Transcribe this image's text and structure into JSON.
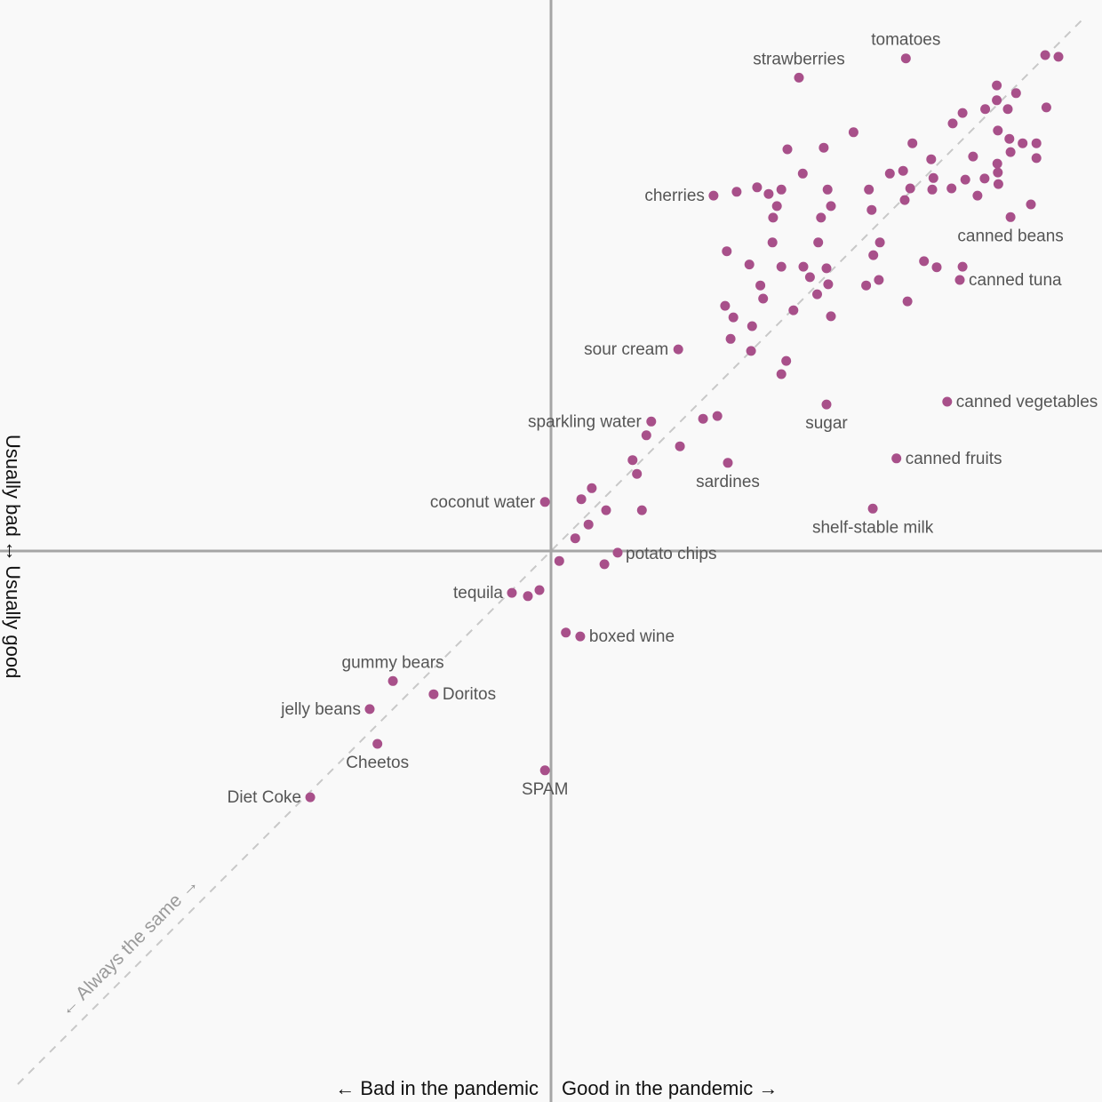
{
  "chart_data": {
    "type": "scatter",
    "title": "",
    "xlabel_left": "← Bad in the pandemic",
    "xlabel_right": "Good in the pandemic →",
    "ylabel_top": "← Usually good",
    "ylabel_bottom": "Usually bad →",
    "diagonal_label": "← Always the same →",
    "xlim": [
      -1,
      1
    ],
    "ylim": [
      -1,
      1
    ],
    "grid": false,
    "colors": {
      "point": "#a8508a",
      "axis": "#a6a6a6",
      "diagonal": "#c8c8c8",
      "background": "#f9f9f9"
    },
    "points": [
      {
        "x": 0.644,
        "y": 0.894,
        "label": "tomatoes"
      },
      {
        "x": 0.45,
        "y": 0.859,
        "label": "strawberries"
      },
      {
        "x": 0.295,
        "y": 0.645,
        "label": "cherries"
      },
      {
        "x": 0.834,
        "y": 0.606,
        "label": "canned beans"
      },
      {
        "x": 0.742,
        "y": 0.492,
        "label": "canned tuna"
      },
      {
        "x": 0.231,
        "y": 0.366,
        "label": "sour cream"
      },
      {
        "x": 0.719,
        "y": 0.271,
        "label": "canned vegetables"
      },
      {
        "x": 0.5,
        "y": 0.266,
        "label": "sugar"
      },
      {
        "x": 0.182,
        "y": 0.235,
        "label": "sparkling water"
      },
      {
        "x": 0.627,
        "y": 0.168,
        "label": "canned fruits"
      },
      {
        "x": 0.321,
        "y": 0.16,
        "label": "sardines"
      },
      {
        "x": -0.011,
        "y": 0.089,
        "label": "coconut water"
      },
      {
        "x": 0.584,
        "y": 0.077,
        "label": "shelf-stable milk"
      },
      {
        "x": 0.121,
        "y": -0.003,
        "label": "potato chips"
      },
      {
        "x": -0.071,
        "y": -0.076,
        "label": "tequila"
      },
      {
        "x": 0.053,
        "y": -0.155,
        "label": "boxed wine"
      },
      {
        "x": -0.287,
        "y": -0.236,
        "label": "gummy bears"
      },
      {
        "x": -0.213,
        "y": -0.26,
        "label": "Doritos"
      },
      {
        "x": -0.329,
        "y": -0.287,
        "label": "jelly beans"
      },
      {
        "x": -0.315,
        "y": -0.35,
        "label": "Cheetos"
      },
      {
        "x": -0.011,
        "y": -0.398,
        "label": "SPAM"
      },
      {
        "x": -0.437,
        "y": -0.447,
        "label": "Diet Coke"
      },
      {
        "x": 0.897,
        "y": 0.9,
        "label": ""
      },
      {
        "x": 0.921,
        "y": 0.897,
        "label": ""
      },
      {
        "x": 0.809,
        "y": 0.845,
        "label": ""
      },
      {
        "x": 0.844,
        "y": 0.831,
        "label": ""
      },
      {
        "x": 0.809,
        "y": 0.818,
        "label": ""
      },
      {
        "x": 0.829,
        "y": 0.802,
        "label": ""
      },
      {
        "x": 0.788,
        "y": 0.802,
        "label": ""
      },
      {
        "x": 0.899,
        "y": 0.805,
        "label": ""
      },
      {
        "x": 0.747,
        "y": 0.795,
        "label": ""
      },
      {
        "x": 0.729,
        "y": 0.776,
        "label": ""
      },
      {
        "x": 0.549,
        "y": 0.76,
        "label": ""
      },
      {
        "x": 0.811,
        "y": 0.763,
        "label": ""
      },
      {
        "x": 0.832,
        "y": 0.748,
        "label": ""
      },
      {
        "x": 0.856,
        "y": 0.74,
        "label": ""
      },
      {
        "x": 0.881,
        "y": 0.74,
        "label": ""
      },
      {
        "x": 0.429,
        "y": 0.729,
        "label": ""
      },
      {
        "x": 0.495,
        "y": 0.732,
        "label": ""
      },
      {
        "x": 0.656,
        "y": 0.74,
        "label": ""
      },
      {
        "x": 0.834,
        "y": 0.724,
        "label": ""
      },
      {
        "x": 0.766,
        "y": 0.716,
        "label": ""
      },
      {
        "x": 0.81,
        "y": 0.703,
        "label": ""
      },
      {
        "x": 0.881,
        "y": 0.713,
        "label": ""
      },
      {
        "x": 0.69,
        "y": 0.711,
        "label": ""
      },
      {
        "x": 0.811,
        "y": 0.687,
        "label": ""
      },
      {
        "x": 0.639,
        "y": 0.69,
        "label": ""
      },
      {
        "x": 0.615,
        "y": 0.685,
        "label": ""
      },
      {
        "x": 0.457,
        "y": 0.685,
        "label": ""
      },
      {
        "x": 0.694,
        "y": 0.677,
        "label": ""
      },
      {
        "x": 0.752,
        "y": 0.674,
        "label": ""
      },
      {
        "x": 0.787,
        "y": 0.676,
        "label": ""
      },
      {
        "x": 0.812,
        "y": 0.666,
        "label": ""
      },
      {
        "x": 0.652,
        "y": 0.658,
        "label": ""
      },
      {
        "x": 0.692,
        "y": 0.656,
        "label": ""
      },
      {
        "x": 0.727,
        "y": 0.658,
        "label": ""
      },
      {
        "x": 0.374,
        "y": 0.66,
        "label": ""
      },
      {
        "x": 0.418,
        "y": 0.656,
        "label": ""
      },
      {
        "x": 0.502,
        "y": 0.656,
        "label": ""
      },
      {
        "x": 0.577,
        "y": 0.656,
        "label": ""
      },
      {
        "x": 0.337,
        "y": 0.652,
        "label": ""
      },
      {
        "x": 0.395,
        "y": 0.648,
        "label": ""
      },
      {
        "x": 0.774,
        "y": 0.645,
        "label": ""
      },
      {
        "x": 0.642,
        "y": 0.637,
        "label": ""
      },
      {
        "x": 0.41,
        "y": 0.626,
        "label": ""
      },
      {
        "x": 0.508,
        "y": 0.626,
        "label": ""
      },
      {
        "x": 0.871,
        "y": 0.629,
        "label": ""
      },
      {
        "x": 0.403,
        "y": 0.605,
        "label": ""
      },
      {
        "x": 0.49,
        "y": 0.605,
        "label": ""
      },
      {
        "x": 0.582,
        "y": 0.619,
        "label": ""
      },
      {
        "x": 0.402,
        "y": 0.56,
        "label": ""
      },
      {
        "x": 0.485,
        "y": 0.56,
        "label": ""
      },
      {
        "x": 0.597,
        "y": 0.56,
        "label": ""
      },
      {
        "x": 0.319,
        "y": 0.544,
        "label": ""
      },
      {
        "x": 0.585,
        "y": 0.537,
        "label": ""
      },
      {
        "x": 0.36,
        "y": 0.52,
        "label": ""
      },
      {
        "x": 0.418,
        "y": 0.516,
        "label": ""
      },
      {
        "x": 0.458,
        "y": 0.516,
        "label": ""
      },
      {
        "x": 0.5,
        "y": 0.513,
        "label": ""
      },
      {
        "x": 0.677,
        "y": 0.526,
        "label": ""
      },
      {
        "x": 0.7,
        "y": 0.515,
        "label": ""
      },
      {
        "x": 0.747,
        "y": 0.516,
        "label": ""
      },
      {
        "x": 0.47,
        "y": 0.497,
        "label": ""
      },
      {
        "x": 0.595,
        "y": 0.492,
        "label": ""
      },
      {
        "x": 0.38,
        "y": 0.482,
        "label": ""
      },
      {
        "x": 0.503,
        "y": 0.484,
        "label": ""
      },
      {
        "x": 0.572,
        "y": 0.482,
        "label": ""
      },
      {
        "x": 0.483,
        "y": 0.466,
        "label": ""
      },
      {
        "x": 0.385,
        "y": 0.458,
        "label": ""
      },
      {
        "x": 0.647,
        "y": 0.453,
        "label": ""
      },
      {
        "x": 0.316,
        "y": 0.445,
        "label": ""
      },
      {
        "x": 0.44,
        "y": 0.437,
        "label": ""
      },
      {
        "x": 0.331,
        "y": 0.424,
        "label": ""
      },
      {
        "x": 0.508,
        "y": 0.426,
        "label": ""
      },
      {
        "x": 0.365,
        "y": 0.408,
        "label": ""
      },
      {
        "x": 0.326,
        "y": 0.385,
        "label": ""
      },
      {
        "x": 0.363,
        "y": 0.363,
        "label": ""
      },
      {
        "x": 0.427,
        "y": 0.345,
        "label": ""
      },
      {
        "x": 0.418,
        "y": 0.321,
        "label": ""
      },
      {
        "x": 0.276,
        "y": 0.24,
        "label": ""
      },
      {
        "x": 0.302,
        "y": 0.245,
        "label": ""
      },
      {
        "x": 0.173,
        "y": 0.21,
        "label": ""
      },
      {
        "x": 0.234,
        "y": 0.19,
        "label": ""
      },
      {
        "x": 0.148,
        "y": 0.165,
        "label": ""
      },
      {
        "x": 0.156,
        "y": 0.14,
        "label": ""
      },
      {
        "x": 0.074,
        "y": 0.114,
        "label": ""
      },
      {
        "x": 0.055,
        "y": 0.094,
        "label": ""
      },
      {
        "x": 0.1,
        "y": 0.074,
        "label": ""
      },
      {
        "x": 0.165,
        "y": 0.074,
        "label": ""
      },
      {
        "x": 0.068,
        "y": 0.048,
        "label": ""
      },
      {
        "x": 0.044,
        "y": 0.023,
        "label": ""
      },
      {
        "x": 0.097,
        "y": -0.024,
        "label": ""
      },
      {
        "x": 0.015,
        "y": -0.018,
        "label": ""
      },
      {
        "x": -0.042,
        "y": -0.082,
        "label": ""
      },
      {
        "x": -0.021,
        "y": -0.071,
        "label": ""
      },
      {
        "x": 0.027,
        "y": -0.148,
        "label": ""
      }
    ]
  }
}
